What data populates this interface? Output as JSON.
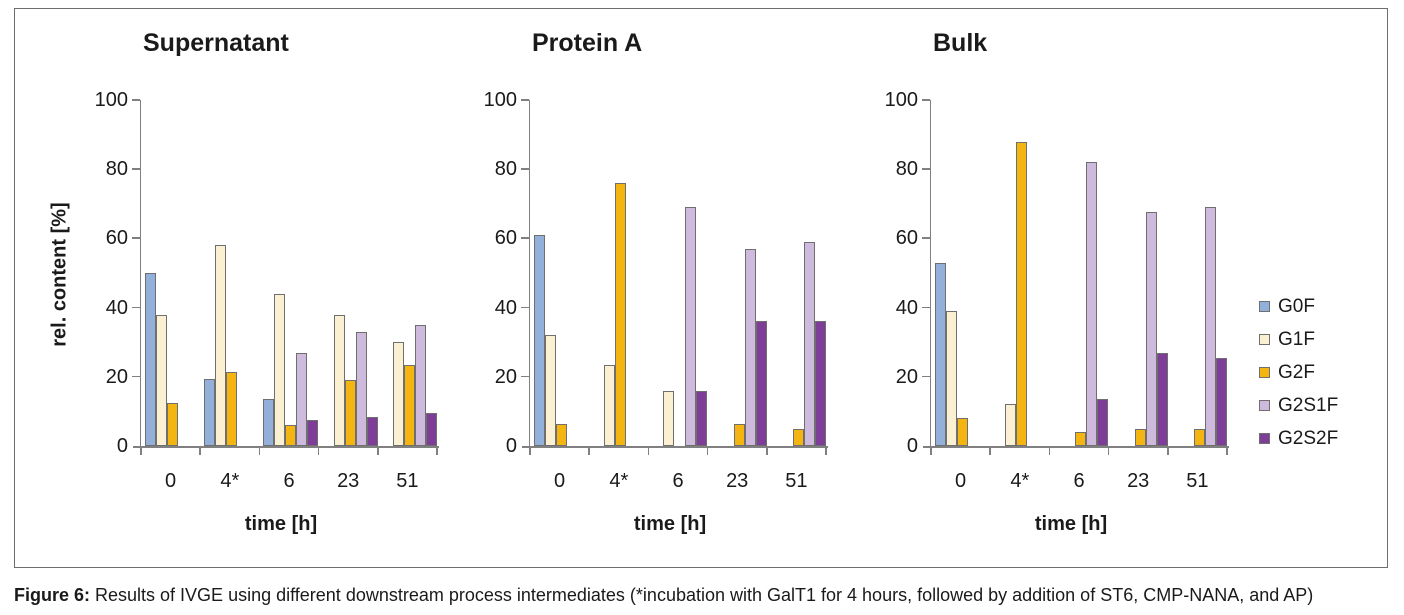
{
  "figure": {
    "caption_label": "Figure 6:",
    "caption_text": " Results of IVGE using different downstream process intermediates (*incubation with GalT1 for 4 hours, followed by addition of ST6, CMP-NANA, and AP)"
  },
  "axes": {
    "ylabel": "rel. content [%]",
    "xlabel": "time [h]",
    "ylim": [
      0,
      100
    ],
    "yticks": [
      0,
      20,
      40,
      60,
      80,
      100
    ],
    "grid": false
  },
  "legend": {
    "position": "right",
    "items": [
      {
        "label": "G0F",
        "color": "#92B0DA"
      },
      {
        "label": "G1F",
        "color": "#FBF0D2"
      },
      {
        "label": "G2F",
        "color": "#F4B512"
      },
      {
        "label": "G2S1F",
        "color": "#CDBADD"
      },
      {
        "label": "G2S2F",
        "color": "#7E3D97"
      }
    ]
  },
  "chart_data": [
    {
      "type": "bar",
      "title": "Supernatant",
      "categories": [
        "0",
        "4*",
        "6",
        "23",
        "51"
      ],
      "series": [
        {
          "name": "G0F",
          "values": [
            50,
            19.5,
            13.5,
            null,
            null
          ]
        },
        {
          "name": "G1F",
          "values": [
            38,
            58,
            44,
            38,
            30
          ]
        },
        {
          "name": "G2F",
          "values": [
            12.5,
            21.5,
            6,
            19,
            23.5
          ]
        },
        {
          "name": "G2S1F",
          "values": [
            null,
            null,
            27,
            33,
            35
          ]
        },
        {
          "name": "G2S2F",
          "values": [
            null,
            null,
            7.5,
            8.5,
            9.5
          ]
        }
      ]
    },
    {
      "type": "bar",
      "title": "Protein A",
      "categories": [
        "0",
        "4*",
        "6",
        "23",
        "51"
      ],
      "series": [
        {
          "name": "G0F",
          "values": [
            61,
            null,
            null,
            null,
            null
          ]
        },
        {
          "name": "G1F",
          "values": [
            32,
            23.5,
            16,
            null,
            null
          ]
        },
        {
          "name": "G2F",
          "values": [
            6.5,
            76,
            null,
            6.5,
            5
          ]
        },
        {
          "name": "G2S1F",
          "values": [
            null,
            null,
            69,
            57,
            59
          ]
        },
        {
          "name": "G2S2F",
          "values": [
            null,
            null,
            16,
            36,
            36
          ]
        }
      ]
    },
    {
      "type": "bar",
      "title": "Bulk",
      "categories": [
        "0",
        "4*",
        "6",
        "23",
        "51"
      ],
      "series": [
        {
          "name": "G0F",
          "values": [
            53,
            null,
            null,
            null,
            null
          ]
        },
        {
          "name": "G1F",
          "values": [
            39,
            12,
            null,
            null,
            null
          ]
        },
        {
          "name": "G2F",
          "values": [
            8,
            88,
            4,
            5,
            5
          ]
        },
        {
          "name": "G2S1F",
          "values": [
            null,
            null,
            82,
            67.5,
            69
          ]
        },
        {
          "name": "G2S2F",
          "values": [
            null,
            null,
            13.5,
            27,
            25.5
          ]
        }
      ]
    }
  ]
}
